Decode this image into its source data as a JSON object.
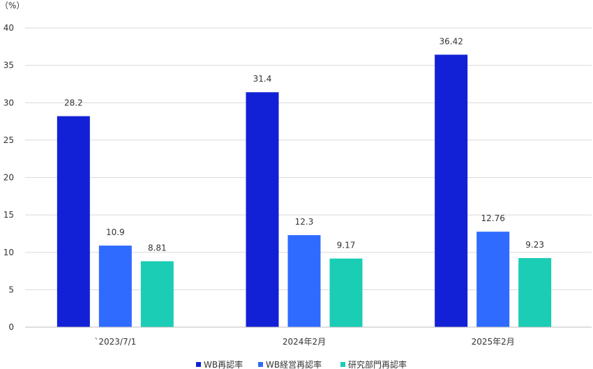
{
  "chart_data": {
    "type": "bar",
    "y_unit": "（%）",
    "categories": [
      "`2023/7/1",
      "2024年2月",
      "2025年2月"
    ],
    "series": [
      {
        "name": "WB再認率",
        "values": [
          28.2,
          31.4,
          36.42
        ],
        "labels": [
          "28.2",
          "31.4",
          "36.42"
        ],
        "color": "#1220D6"
      },
      {
        "name": "WB経営再認率",
        "values": [
          10.9,
          12.3,
          12.76
        ],
        "labels": [
          "10.9",
          "12.3",
          "12.76"
        ],
        "color": "#2F6BFF"
      },
      {
        "name": "研究部門再認率",
        "values": [
          8.81,
          9.17,
          9.23
        ],
        "labels": [
          "8.81",
          "9.17",
          "9.23"
        ],
        "color": "#1ACDB4"
      }
    ],
    "ylim": [
      0,
      40
    ],
    "yticks": [
      0,
      5,
      10,
      15,
      20,
      25,
      30,
      35,
      40
    ],
    "grid": true,
    "legend_position": "bottom-center"
  }
}
